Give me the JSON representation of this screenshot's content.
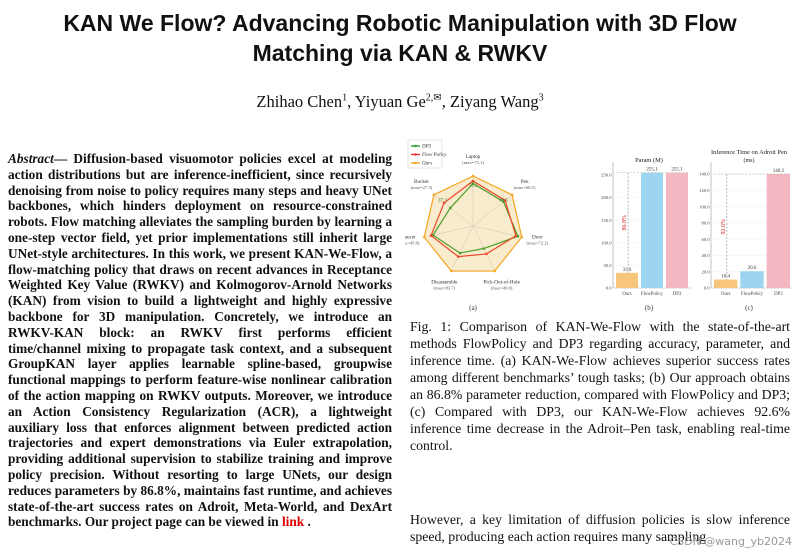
{
  "paper": {
    "title_line1": "KAN We Flow? Advancing Robotic Manipulation with 3D Flow",
    "title_line2": "Matching via KAN & RWKV",
    "authors": [
      {
        "name": "Zhihao Chen",
        "sup": "1"
      },
      {
        "name": "Yiyuan Ge",
        "sup": "2,✉"
      },
      {
        "name": "Ziyang Wang",
        "sup": "3"
      }
    ],
    "abstract_label": "Abstract",
    "abstract_text": "— Diffusion-based visuomotor policies excel at modeling action distributions but are inference-inefficient, since recursively denoising from noise to policy requires many steps and heavy UNet backbones, which hinders deployment on resource-constrained robots. Flow matching alleviates the sampling burden by learning a one-step vector field, yet prior implementations still inherit large UNet-style architectures. In this work, we present KAN-We-Flow, a flow-matching policy that draws on recent advances in Receptance Weighted Key Value (RWKV) and Kolmogorov-Arnold Networks (KAN) from vision to build a lightweight and highly expressive backbone for 3D manipulation. Concretely, we introduce an RWKV-KAN block: an RWKV first performs efficient time/channel mixing to propagate task context, and a subsequent GroupKAN layer applies learnable spline-based, groupwise functional mappings to perform feature-wise nonlinear calibration of the action mapping on RWKV outputs. Moreover, we introduce an Action Consistency Regularization (ACR), a lightweight auxiliary loss that enforces alignment between predicted action trajectories and expert demonstrations via Euler extrapolation, providing additional supervision to stabilize training and improve policy precision. Without resorting to large UNets, our design reduces parameters by 86.8%, maintains fast runtime, and achieves state-of-the-art success rates on Adroit, Meta-World, and DexArt benchmarks. Our project page can be viewed in",
    "abstract_link": "link",
    "abstract_end": " .",
    "caption": "Fig. 1: Comparison of KAN-We-Flow with the state-of-the-art methods FlowPolicy and DP3 regarding accuracy, parameter, and inference time. (a) KAN-We-Flow achieves superior success rates among different benchmarks’ tough tasks; (b) Our approach obtains an 86.8% parameter reduction, compared with FlowPolicy and DP3; (c) Compared with DP3, our KAN-We-Flow achieves 92.6% inference time decrease in the Adroit–Pen task, enabling real-time control.",
    "body_text": "However, a key limitation of diffusion policies is slow inference speed, producing each action requires many sampling",
    "watermark": "CSDN @wang_yb2024"
  },
  "colors": {
    "ours": "#f5a623",
    "flowpolicy": "#e8312a",
    "dp3": "#2a9d2a",
    "bar_flow": "#9dd4f0",
    "bar_dp3": "#f4b6c0",
    "bar_ours": "#f7c67a"
  },
  "chart_data": [
    {
      "type": "radar",
      "panel_label": "(a)",
      "legend": [
        "DP3",
        "Flow Policy",
        "Ours"
      ],
      "axes": [
        {
          "label": "Laptop",
          "sub": "(max=73.1)"
        },
        {
          "label": "Pen",
          "sub": "(max=66.5)"
        },
        {
          "label": "Door",
          "sub": "(max=72.2)"
        },
        {
          "label": "Pick-Out-of-Hole",
          "sub": "(max=49.0)"
        },
        {
          "label": "Disassemble",
          "sub": "(max=83.7)"
        },
        {
          "label": "Faucet",
          "sub": "(max=45.0)"
        },
        {
          "label": "Bucket",
          "sub": "(max=27.3)"
        }
      ],
      "value_labels": [
        "73.1",
        "66.5",
        "",
        "",
        "",
        "",
        "27.3"
      ],
      "series": [
        {
          "name": "DP3",
          "values": [
            0.85,
            0.78,
            0.92,
            0.5,
            0.6,
            0.82,
            0.58
          ]
        },
        {
          "name": "Flow Policy",
          "values": [
            0.9,
            0.82,
            0.88,
            0.62,
            0.68,
            0.86,
            0.74
          ]
        },
        {
          "name": "Ours",
          "values": [
            1.0,
            1.0,
            1.0,
            1.0,
            1.0,
            1.0,
            1.0
          ]
        }
      ]
    },
    {
      "type": "bar",
      "panel_label": "(b)",
      "title": "Param (M)",
      "categories": [
        "Ours",
        "FlowPolicy",
        "DP3"
      ],
      "values": [
        33.6,
        255.1,
        255.1
      ],
      "value_labels": [
        "33.6",
        "255.1",
        "255.1"
      ],
      "ylim": [
        0,
        270
      ],
      "yticks": [
        "0.0",
        "50.0",
        "100.0",
        "150.0",
        "200.0",
        "250.0"
      ],
      "annotation": "86.8%"
    },
    {
      "type": "bar",
      "panel_label": "(c)",
      "title": "Inference Time on Adroit Pen",
      "subtitle": "(ms)",
      "categories": [
        "Ours",
        "FlowPolicy",
        "DP3"
      ],
      "values": [
        10.4,
        20.6,
        140.2
      ],
      "value_labels": [
        "10.4",
        "20.6",
        "140.2"
      ],
      "ylim": [
        0,
        150
      ],
      "yticks": [
        "0.0",
        "20.0",
        "40.0",
        "60.0",
        "80.0",
        "100.0",
        "120.0",
        "140.0"
      ],
      "annotation": "92.6%"
    }
  ]
}
